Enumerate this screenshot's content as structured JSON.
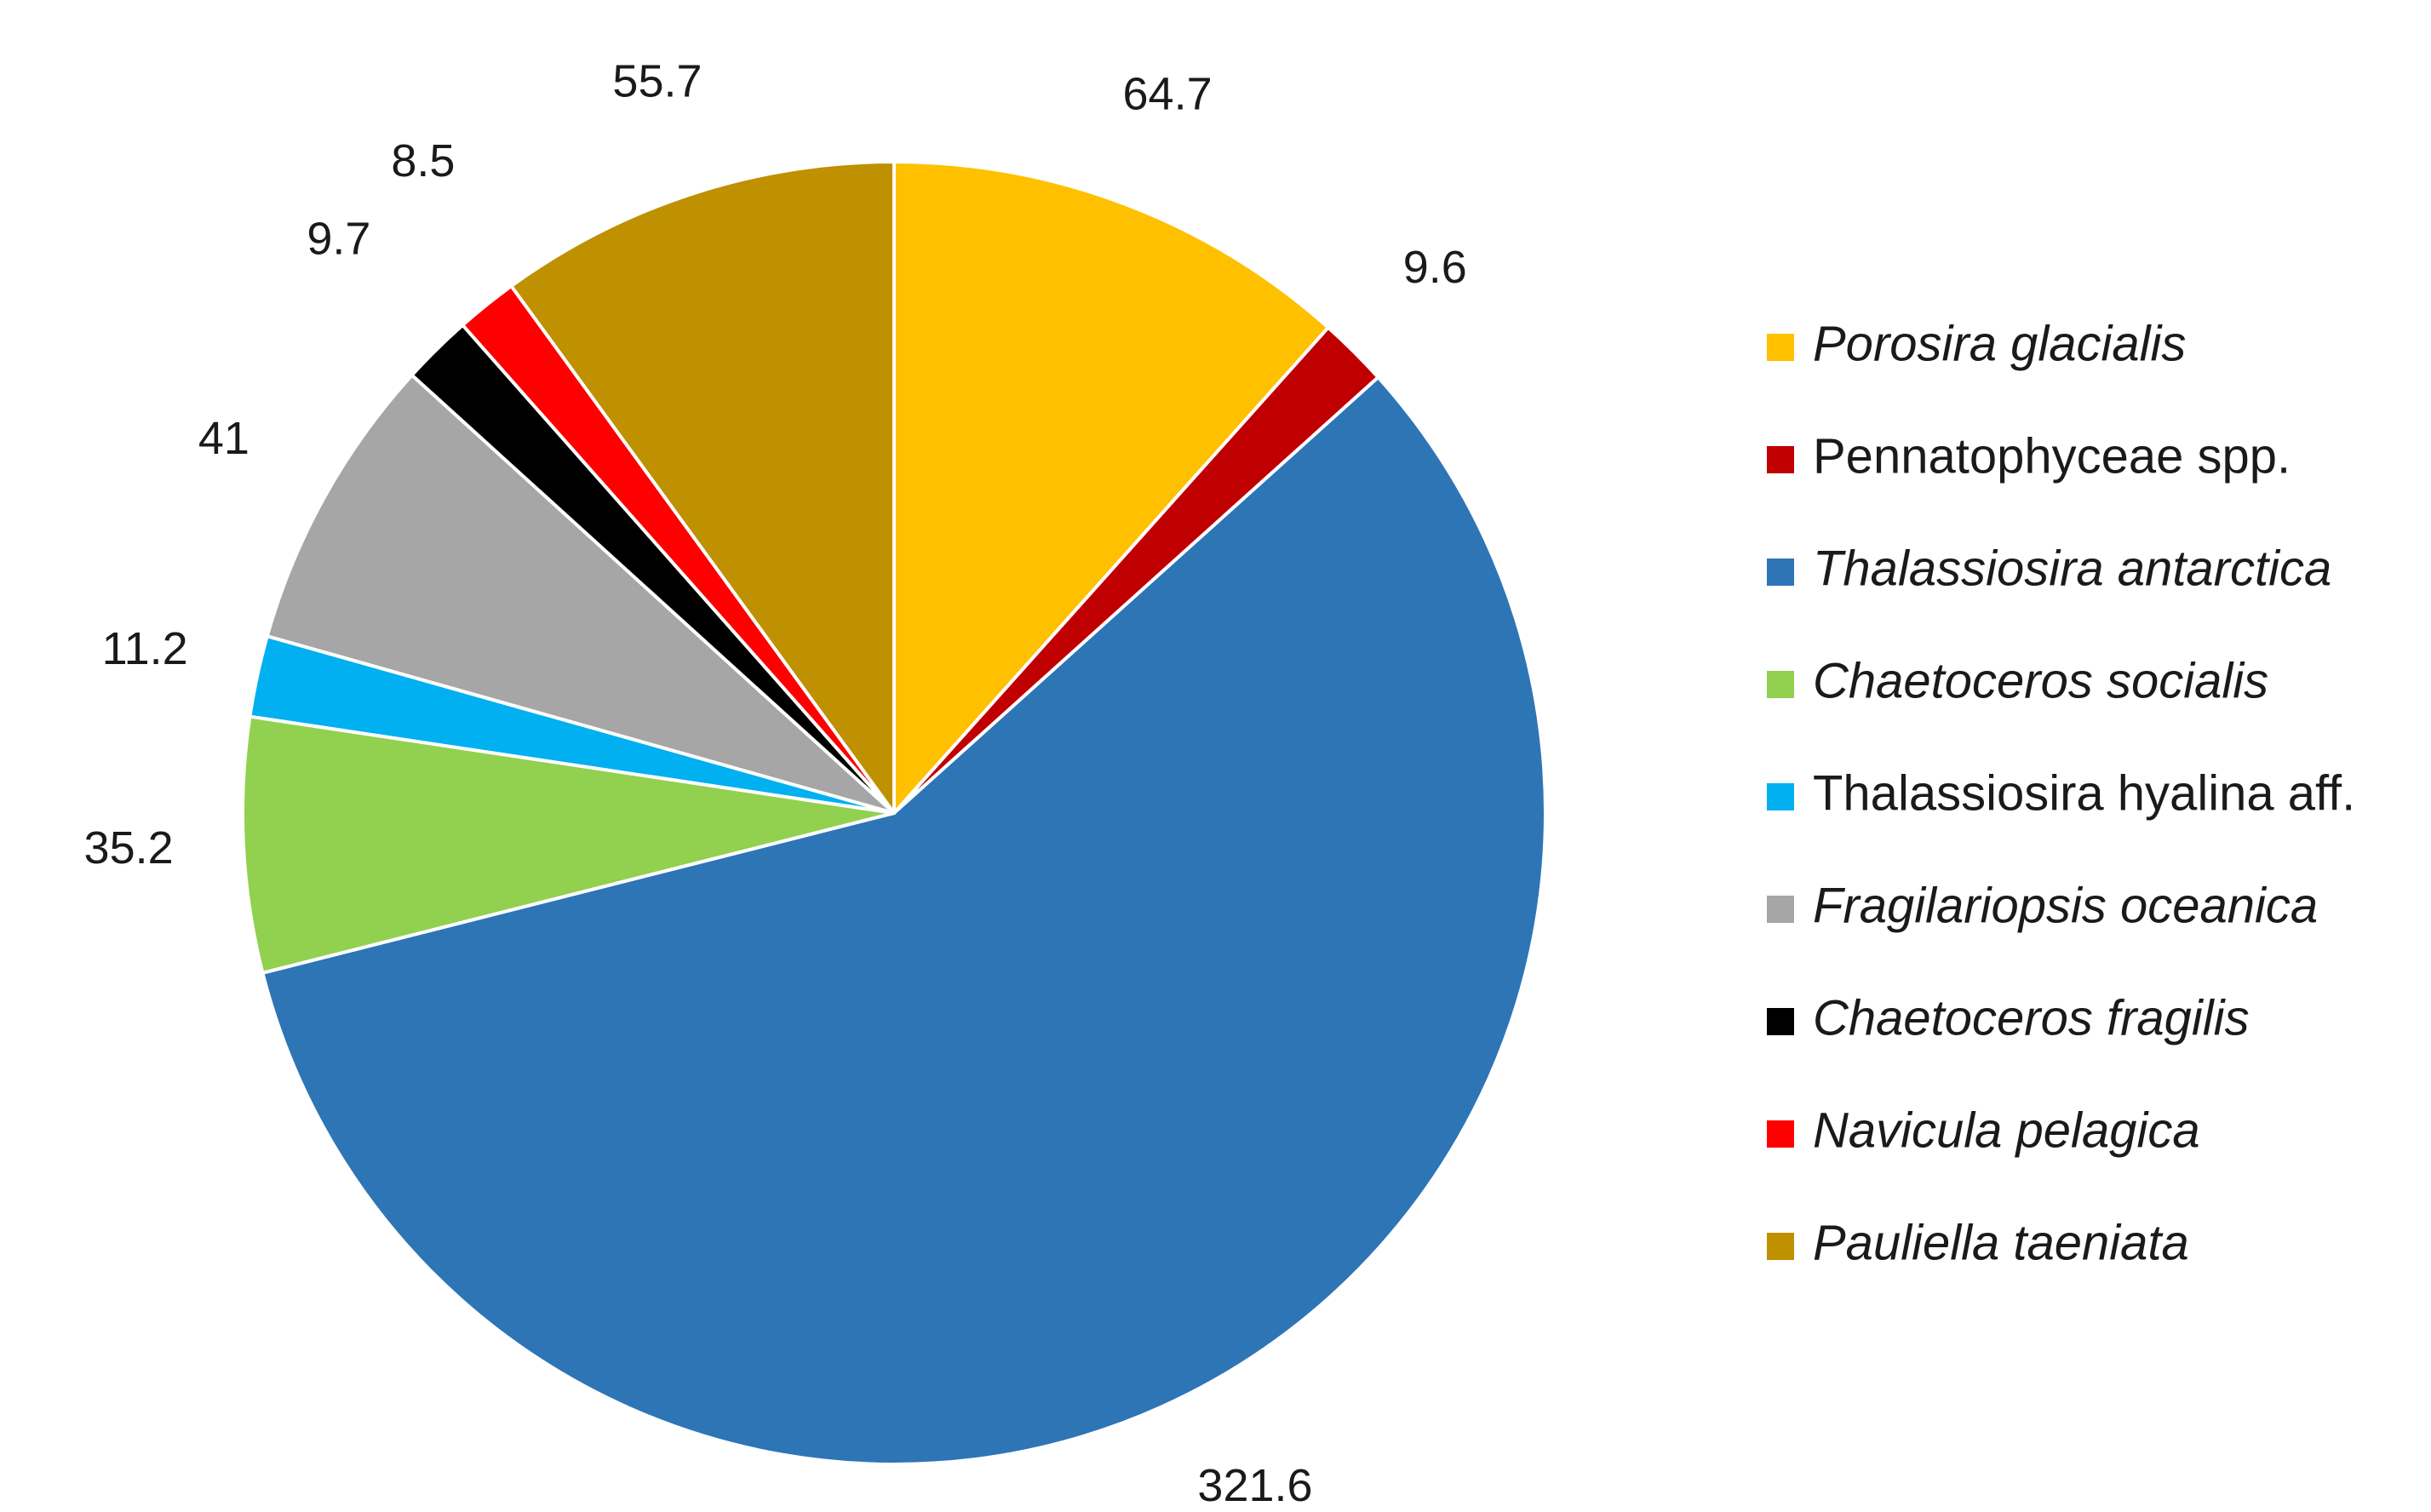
{
  "chart_data": {
    "type": "pie",
    "title": "",
    "start_angle_deg": 0,
    "direction": "clockwise",
    "slice_border_color": "#ffffff",
    "legend_position": "right",
    "slices": [
      {
        "name": "Porosira glacialis",
        "value": 64.7,
        "label": "64.7",
        "color": "#FFC000",
        "italic": true
      },
      {
        "name": "Pennatophyceae spp.",
        "value": 9.6,
        "label": "9.6",
        "color": "#C00000",
        "italic": false
      },
      {
        "name": "Thalassiosira antarctica",
        "value": 321.6,
        "label": "321.6",
        "color": "#2E75B6",
        "italic": true
      },
      {
        "name": "Chaetoceros socialis",
        "value": 35.2,
        "label": "35.2",
        "color": "#92D050",
        "italic": true
      },
      {
        "name": "Thalassiosira hyalina aff.",
        "value": 11.2,
        "label": "11.2",
        "color": "#00B0F0",
        "italic": false
      },
      {
        "name": "Fragilariopsis oceanica",
        "value": 41,
        "label": "41",
        "color": "#A6A6A6",
        "italic": true
      },
      {
        "name": "Chaetoceros fragilis",
        "value": 9.7,
        "label": "9.7",
        "color": "#000000",
        "italic": true
      },
      {
        "name": "Navicula pelagica",
        "value": 8.5,
        "label": "8.5",
        "color": "#FF0000",
        "italic": true
      },
      {
        "name": "Pauliella taeniata",
        "value": 55.7,
        "label": "55.7",
        "color": "#BF9000",
        "italic": true
      }
    ]
  }
}
